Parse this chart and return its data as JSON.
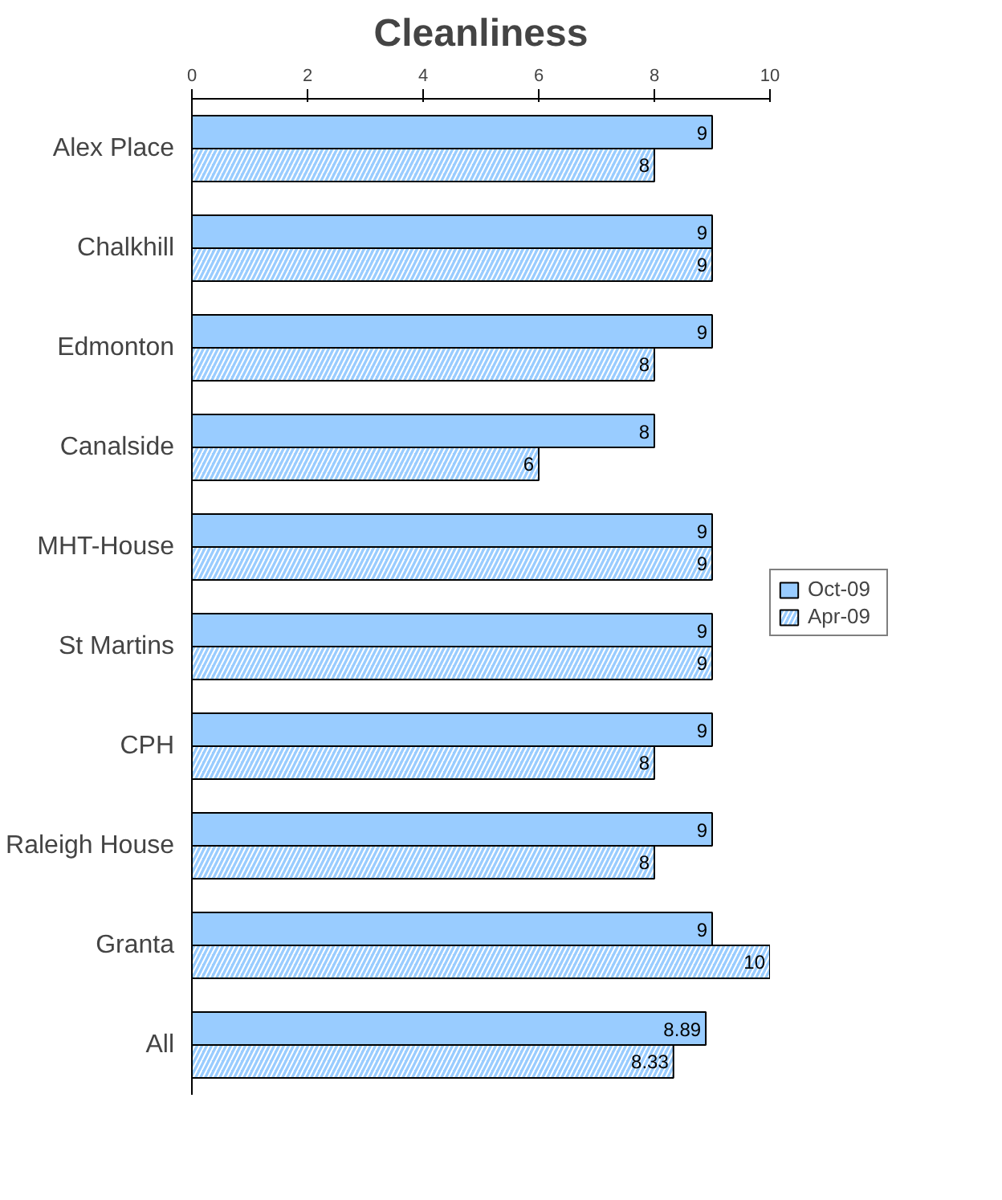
{
  "chart_data": {
    "type": "bar",
    "orientation": "horizontal",
    "title": "Cleanliness",
    "categories": [
      "Alex Place",
      "Chalkhill",
      "Edmonton",
      "Canalside",
      "MHT-House",
      "St Martins",
      "CPH",
      "Raleigh House",
      "Granta",
      "All"
    ],
    "series": [
      {
        "name": "Oct-09",
        "color": "#99ccff",
        "values": [
          9,
          9,
          9,
          8,
          9,
          9,
          9,
          9,
          9,
          8.89
        ]
      },
      {
        "name": "Apr-09",
        "color": "#99ccff",
        "values": [
          8,
          9,
          8,
          6,
          9,
          9,
          8,
          8,
          10,
          8.33
        ]
      }
    ],
    "xlim": [
      0,
      10
    ],
    "xticks": [
      0,
      2,
      4,
      6,
      8,
      10
    ],
    "grid": false,
    "legend": "right",
    "data_labels": true
  }
}
